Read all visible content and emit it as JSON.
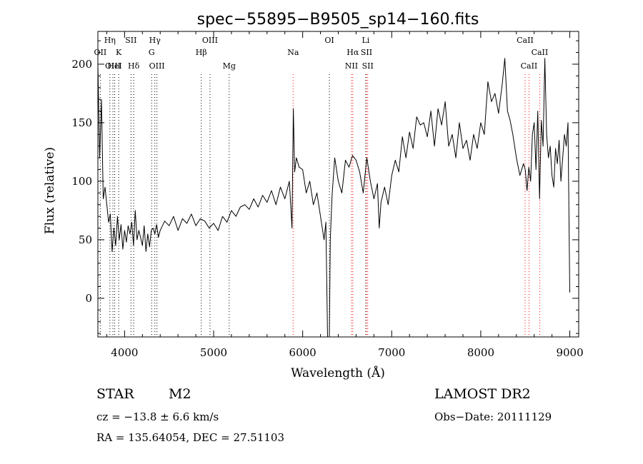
{
  "chart_data": {
    "type": "line",
    "title": "spec−55895−B9505_sp14−160.fits",
    "xlabel": "Wavelength (Å)",
    "ylabel": "Flux (relative)",
    "xlim": [
      3700,
      9100
    ],
    "ylim": [
      -33,
      228
    ],
    "x_ticks": [
      4000,
      5000,
      6000,
      7000,
      8000,
      9000
    ],
    "y_ticks": [
      0,
      50,
      100,
      150,
      200
    ],
    "grid": false,
    "colors": {
      "spectrum": "#000000",
      "line_markers": "#ff0000",
      "axes": "#000000"
    },
    "series": [
      {
        "x": [
          3700,
          3720,
          3740,
          3760,
          3780,
          3800,
          3820,
          3840,
          3860,
          3880,
          3900,
          3920,
          3940,
          3960,
          3980,
          4000,
          4020,
          4040,
          4060,
          4080,
          4100,
          4120,
          4140,
          4160,
          4180,
          4200,
          4220,
          4240,
          4260,
          4280,
          4300,
          4320,
          4340,
          4360,
          4380,
          4400,
          4450,
          4500,
          4550,
          4600,
          4650,
          4700,
          4750,
          4800,
          4850,
          4900,
          4950,
          5000,
          5050,
          5100,
          5150,
          5200,
          5250,
          5300,
          5350,
          5400,
          5450,
          5500,
          5550,
          5600,
          5650,
          5700,
          5750,
          5800,
          5850,
          5880,
          5895,
          5910,
          5930,
          5960,
          6000,
          6040,
          6080,
          6120,
          6160,
          6200,
          6240,
          6260,
          6280,
          6300,
          6310,
          6330,
          6360,
          6400,
          6440,
          6480,
          6520,
          6560,
          6600,
          6640,
          6680,
          6720,
          6760,
          6800,
          6840,
          6860,
          6880,
          6920,
          6960,
          7000,
          7040,
          7080,
          7120,
          7160,
          7200,
          7240,
          7280,
          7320,
          7360,
          7400,
          7440,
          7480,
          7520,
          7560,
          7600,
          7640,
          7680,
          7720,
          7760,
          7800,
          7840,
          7880,
          7920,
          7960,
          8000,
          8040,
          8080,
          8120,
          8160,
          8200,
          8240,
          8270,
          8300,
          8330,
          8360,
          8400,
          8440,
          8480,
          8500,
          8520,
          8540,
          8560,
          8580,
          8600,
          8620,
          8640,
          8660,
          8680,
          8700,
          8720,
          8740,
          8760,
          8780,
          8800,
          8820,
          8840,
          8860,
          8880,
          8900,
          8920,
          8940,
          8960,
          8980,
          9000
        ],
        "y": [
          200,
          120,
          170,
          85,
          95,
          80,
          65,
          72,
          40,
          60,
          45,
          70,
          50,
          63,
          42,
          58,
          48,
          62,
          55,
          65,
          45,
          75,
          50,
          58,
          52,
          45,
          62,
          40,
          55,
          44,
          58,
          60,
          55,
          63,
          52,
          58,
          66,
          62,
          70,
          58,
          68,
          64,
          72,
          62,
          68,
          66,
          60,
          64,
          58,
          70,
          65,
          75,
          70,
          78,
          80,
          76,
          85,
          78,
          88,
          82,
          92,
          80,
          95,
          85,
          100,
          60,
          162,
          108,
          120,
          112,
          110,
          90,
          100,
          80,
          90,
          70,
          50,
          65,
          -38,
          -38,
          50,
          88,
          120,
          100,
          90,
          118,
          112,
          122,
          118,
          108,
          90,
          120,
          100,
          85,
          98,
          60,
          82,
          95,
          80,
          105,
          118,
          108,
          138,
          120,
          142,
          128,
          155,
          148,
          150,
          138,
          160,
          130,
          162,
          148,
          168,
          130,
          140,
          120,
          150,
          128,
          135,
          118,
          140,
          128,
          150,
          140,
          185,
          168,
          175,
          158,
          182,
          205,
          160,
          152,
          140,
          120,
          105,
          115,
          110,
          92,
          112,
          100,
          140,
          150,
          110,
          160,
          85,
          152,
          130,
          205,
          140,
          120,
          130,
          105,
          95,
          128,
          115,
          135,
          100,
          120,
          140,
          130,
          150,
          5
        ]
      }
    ],
    "lines": [
      {
        "name": "OII",
        "wl": 3727,
        "label_row": 2,
        "color": "#000000"
      },
      {
        "name": "Hη",
        "wl": 3835,
        "label_row": 1,
        "color": "#000000"
      },
      {
        "name": "OIII",
        "wl": 3869,
        "label_row": 3,
        "color": "#000000"
      },
      {
        "name": "HeI",
        "wl": 3889,
        "label_row": 3,
        "color": "#000000"
      },
      {
        "name": "K",
        "wl": 3934,
        "label_row": 2,
        "color": "#000000"
      },
      {
        "name": "SII",
        "wl": 4072,
        "label_row": 1,
        "color": "#000000"
      },
      {
        "name": "Hδ",
        "wl": 4102,
        "label_row": 3,
        "color": "#000000"
      },
      {
        "name": "Hγ",
        "wl": 4340,
        "label_row": 1,
        "color": "#000000"
      },
      {
        "name": "G",
        "wl": 4304,
        "label_row": 2,
        "color": "#000000"
      },
      {
        "name": "OIII",
        "wl": 4363,
        "label_row": 3,
        "color": "#000000"
      },
      {
        "name": "Hβ",
        "wl": 4861,
        "label_row": 2,
        "color": "#000000"
      },
      {
        "name": "OIII",
        "wl": 4959,
        "label_row": 1,
        "color": "#000000"
      },
      {
        "name": "Mg",
        "wl": 5175,
        "label_row": 3,
        "color": "#000000"
      },
      {
        "name": "Na",
        "wl": 5893,
        "label_row": 2,
        "color": "#ff0000"
      },
      {
        "name": "OI",
        "wl": 6300,
        "label_row": 1,
        "color": "#000000"
      },
      {
        "name": "Hα",
        "wl": 6563,
        "label_row": 2,
        "color": "#ff0000"
      },
      {
        "name": "NII",
        "wl": 6548,
        "label_row": 3,
        "color": "#ff0000"
      },
      {
        "name": "Li",
        "wl": 6708,
        "label_row": 1,
        "color": "#000000"
      },
      {
        "name": "SII",
        "wl": 6717,
        "label_row": 2,
        "color": "#ff0000"
      },
      {
        "name": "SII",
        "wl": 6731,
        "label_row": 3,
        "color": "#ff0000"
      },
      {
        "name": "CaII",
        "wl": 8498,
        "label_row": 1,
        "color": "#ff0000"
      },
      {
        "name": "CaII",
        "wl": 8662,
        "label_row": 2,
        "color": "#ff0000"
      },
      {
        "name": "CaII",
        "wl": 8542,
        "label_row": 3,
        "color": "#ff0000"
      }
    ]
  },
  "info": {
    "object_class": "STAR",
    "subclass": "M2",
    "survey": "LAMOST DR2",
    "redshift": "cz = −13.8 ± 6.6 km/s",
    "obs_date": "Obs−Date: 20111129",
    "coords": "RA = 135.64054, DEC =  27.51103"
  }
}
